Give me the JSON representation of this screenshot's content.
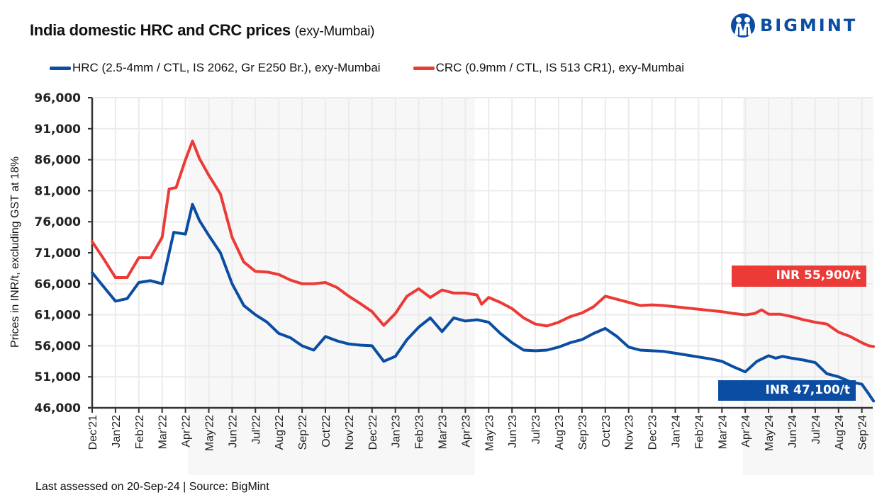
{
  "header": {
    "title_main": "India domestic HRC and CRC prices",
    "title_sub": "(exy-Mumbai)",
    "logo_text": "BIGMINT"
  },
  "footer": {
    "text": "Last assessed on 20-Sep-24  |  Source: BigMint"
  },
  "colors": {
    "hrc": "#0a4da2",
    "crc": "#ec3a36",
    "shade": "#f7f7f7",
    "grid": "#ebebeb",
    "axis": "#333333"
  },
  "callouts": {
    "crc": "INR 55,900/t",
    "hrc": "INR 47,100/t"
  },
  "chart_data": {
    "type": "line",
    "title": "India domestic HRC and CRC prices (exy-Mumbai)",
    "xlabel": "",
    "ylabel": "Prices in INR/t, excluding GST at 18%",
    "ylim": [
      46000,
      96000
    ],
    "yticks": [
      96000,
      91000,
      86000,
      81000,
      76000,
      71000,
      66000,
      61000,
      56000,
      51000,
      46000
    ],
    "ytick_labels": [
      "96,000",
      "91,000",
      "86,000",
      "81,000",
      "76,000",
      "71,000",
      "66,000",
      "61,000",
      "56,000",
      "51,000",
      "46,000"
    ],
    "categories": [
      "Dec'21",
      "Jan'22",
      "Feb'22",
      "Mar'22",
      "Apr'22",
      "May'22",
      "Jun'22",
      "Jul'22",
      "Aug'22",
      "Sep'22",
      "Oct'22",
      "Nov'22",
      "Dec'22",
      "Jan'23",
      "Feb'23",
      "Mar'23",
      "Apr'23",
      "May'23",
      "Jun'23",
      "Jul'23",
      "Aug'23",
      "Sep'23",
      "Oct'23",
      "Nov'23",
      "Dec'23",
      "Jan'24",
      "Feb'24",
      "Mar'24",
      "Apr'24",
      "May'24",
      "Jun'24",
      "Jul'24",
      "Aug'24",
      "Sep'24"
    ],
    "x_unit": "months since Dec'21 (0 = Dec'21)",
    "grid": true,
    "legend_position": "top",
    "shaded_periods": [
      {
        "from": 4.1,
        "to": 16.4
      },
      {
        "from": 27.9,
        "to": 33.5
      }
    ],
    "series": [
      {
        "name": "HRC (2.5-4mm / CTL, IS 2062, Gr E250 Br.), exy-Mumbai",
        "color": "#0a4da2",
        "x": [
          0,
          0.5,
          1,
          1.5,
          2,
          2.5,
          3,
          3.5,
          4,
          4.3,
          4.6,
          5,
          5.5,
          6,
          6.5,
          7,
          7.5,
          8,
          8.5,
          9,
          9.5,
          10,
          10.5,
          11,
          11.5,
          12,
          12.5,
          13,
          13.5,
          14,
          14.5,
          15,
          15.5,
          16,
          16.5,
          17,
          17.5,
          18,
          18.5,
          19,
          19.5,
          20,
          20.5,
          21,
          21.5,
          22,
          22.5,
          23,
          23.5,
          24,
          24.5,
          25,
          25.5,
          26,
          26.5,
          27,
          27.5,
          28,
          28.5,
          29,
          29.3,
          29.6,
          30,
          30.5,
          31,
          31.5,
          32,
          32.5,
          33,
          33.3,
          33.5
        ],
        "values": [
          67800,
          65500,
          63200,
          63600,
          66200,
          66500,
          66000,
          74300,
          74000,
          78800,
          76200,
          73800,
          71000,
          66000,
          62500,
          61000,
          59800,
          58000,
          57300,
          56000,
          55300,
          57500,
          56800,
          56300,
          56100,
          56000,
          53500,
          54300,
          57000,
          59000,
          60500,
          58300,
          60500,
          60000,
          60200,
          59800,
          58000,
          56500,
          55300,
          55200,
          55300,
          55800,
          56500,
          57000,
          58000,
          58800,
          57500,
          55800,
          55300,
          55200,
          55100,
          54800,
          54500,
          54200,
          53900,
          53500,
          52600,
          51800,
          53500,
          54400,
          54000,
          54300,
          54000,
          53700,
          53300,
          51500,
          51000,
          50200,
          49800,
          48200,
          47100
        ]
      },
      {
        "name": "CRC (0.9mm / CTL, IS 513 CR1), exy-Mumbai",
        "color": "#ec3a36",
        "x": [
          0,
          0.5,
          1,
          1.5,
          2,
          2.5,
          3,
          3.3,
          3.6,
          4,
          4.3,
          4.6,
          5,
          5.5,
          6,
          6.5,
          7,
          7.5,
          8,
          8.5,
          9,
          9.5,
          10,
          10.5,
          11,
          11.5,
          12,
          12.5,
          13,
          13.5,
          14,
          14.5,
          15,
          15.5,
          16,
          16.5,
          16.7,
          17,
          17.5,
          18,
          18.5,
          19,
          19.5,
          20,
          20.5,
          21,
          21.5,
          22,
          22.5,
          23,
          23.5,
          24,
          24.5,
          25,
          25.5,
          26,
          26.5,
          27,
          27.5,
          28,
          28.4,
          28.7,
          29,
          29.5,
          30,
          30.5,
          31,
          31.5,
          32,
          32.5,
          33,
          33.3,
          33.5
        ],
        "values": [
          72800,
          70000,
          67000,
          67000,
          70200,
          70200,
          73500,
          81300,
          81500,
          86000,
          89000,
          86200,
          83500,
          80500,
          73500,
          69500,
          68000,
          67900,
          67500,
          66600,
          66000,
          66000,
          66200,
          65400,
          64000,
          62800,
          61500,
          59300,
          61200,
          64000,
          65200,
          63800,
          65000,
          64500,
          64500,
          64200,
          62700,
          63800,
          63000,
          62000,
          60500,
          59500,
          59200,
          59800,
          60700,
          61300,
          62300,
          64000,
          63500,
          63000,
          62500,
          62600,
          62500,
          62300,
          62100,
          61900,
          61700,
          61500,
          61200,
          61000,
          61200,
          61800,
          61100,
          61100,
          60700,
          60200,
          59800,
          59500,
          58200,
          57500,
          56500,
          56000,
          55900
        ]
      }
    ]
  }
}
